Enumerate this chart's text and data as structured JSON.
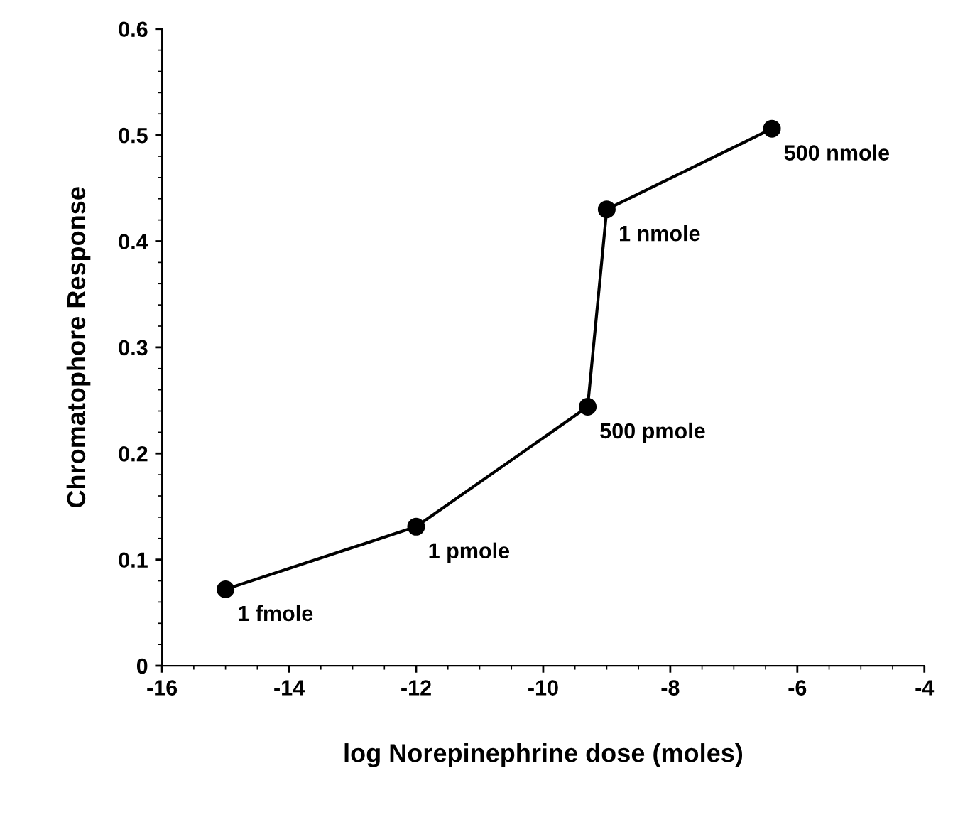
{
  "chart_data": {
    "type": "line",
    "xlabel": "log Norepinephrine dose (moles)",
    "ylabel": "Chromatophore Response",
    "x": [
      -15,
      -12,
      -9.3,
      -9,
      -6.4
    ],
    "series": [
      {
        "color": "#000000",
        "values": [
          0.072,
          0.131,
          0.244,
          0.43,
          0.506
        ]
      }
    ],
    "marker": "circle",
    "line_style": "solid",
    "grid": false,
    "legend": false,
    "xlim": [
      -16,
      -4
    ],
    "xticks": [
      -16,
      -14,
      -12,
      -10,
      -8,
      -6,
      -4
    ],
    "ylim": [
      0,
      0.6
    ],
    "yticks": [
      0,
      0.1,
      0.2,
      0.3,
      0.4,
      0.5,
      0.6
    ],
    "annotations": [
      {
        "text": "1 fmole",
        "x": -15,
        "y": 0.072
      },
      {
        "text": "1 pmole",
        "x": -12,
        "y": 0.131
      },
      {
        "text": "500 pmole",
        "x": -9.3,
        "y": 0.244
      },
      {
        "text": "1 nmole",
        "x": -9,
        "y": 0.43
      },
      {
        "text": "500 nmole",
        "x": -6.4,
        "y": 0.506
      }
    ]
  }
}
